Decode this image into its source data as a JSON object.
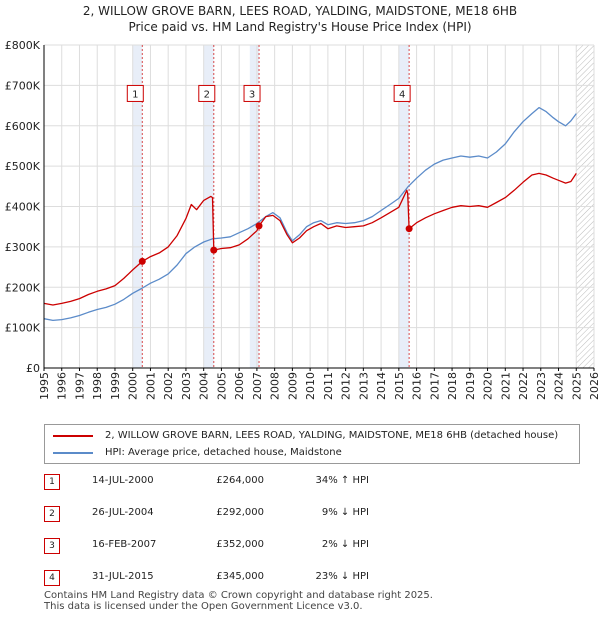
{
  "title_line1": "2, WILLOW GROVE BARN, LEES ROAD, YALDING, MAIDSTONE, ME18 6HB",
  "title_line2": "Price paid vs. HM Land Registry's House Price Index (HPI)",
  "colors": {
    "property": "#cc0000",
    "hpi": "#5b8bc9",
    "marker_line": "#cc0000",
    "grid": "#dddddd",
    "future_hatch": "#bbbbbb"
  },
  "chart_data": {
    "type": "line",
    "xlim": [
      1995,
      2026
    ],
    "ylim": [
      0,
      800000
    ],
    "y_ticks": [
      0,
      100000,
      200000,
      300000,
      400000,
      500000,
      600000,
      700000,
      800000
    ],
    "y_tick_labels": [
      "£0",
      "£100K",
      "£200K",
      "£300K",
      "£400K",
      "£500K",
      "£600K",
      "£700K",
      "£800K"
    ],
    "x_ticks": [
      1995,
      1996,
      1997,
      1998,
      1999,
      2000,
      2001,
      2002,
      2003,
      2004,
      2005,
      2006,
      2007,
      2008,
      2009,
      2010,
      2011,
      2012,
      2013,
      2014,
      2015,
      2016,
      2017,
      2018,
      2019,
      2020,
      2021,
      2022,
      2023,
      2024,
      2025,
      2026
    ],
    "x_tick_labels": [
      "1995",
      "1996",
      "1997",
      "1998",
      "1999",
      "2000",
      "2001",
      "2002",
      "2003",
      "2004",
      "2005",
      "2006",
      "2007",
      "2008",
      "2009",
      "2010",
      "2011",
      "2012",
      "2013",
      "2014",
      "2015",
      "2016",
      "2017",
      "2018",
      "2019",
      "2020",
      "2021",
      "2022",
      "2023",
      "2024",
      "2025",
      "2026"
    ],
    "future_from": 2025.0,
    "sale_bands": [
      [
        2000.0,
        2000.54
      ],
      [
        2004.0,
        2004.57
      ],
      [
        2006.6,
        2007.12
      ],
      [
        2015.0,
        2015.58
      ]
    ],
    "series": [
      {
        "name": "2, WILLOW GROVE BARN, LEES ROAD, YALDING, MAIDSTONE, ME18 6HB (detached house)",
        "color": "#cc0000",
        "points": [
          [
            1995.0,
            160000
          ],
          [
            1995.5,
            156000
          ],
          [
            1996.0,
            160000
          ],
          [
            1996.5,
            165000
          ],
          [
            1997.0,
            172000
          ],
          [
            1997.5,
            182000
          ],
          [
            1998.0,
            190000
          ],
          [
            1998.5,
            196000
          ],
          [
            1999.0,
            204000
          ],
          [
            1999.5,
            222000
          ],
          [
            2000.0,
            243000
          ],
          [
            2000.54,
            264000
          ],
          [
            2001.0,
            276000
          ],
          [
            2001.5,
            285000
          ],
          [
            2002.0,
            300000
          ],
          [
            2002.5,
            328000
          ],
          [
            2003.0,
            370000
          ],
          [
            2003.3,
            405000
          ],
          [
            2003.6,
            392000
          ],
          [
            2004.0,
            415000
          ],
          [
            2004.4,
            425000
          ],
          [
            2004.5,
            422000
          ],
          [
            2004.57,
            292000
          ],
          [
            2005.0,
            296000
          ],
          [
            2005.5,
            298000
          ],
          [
            2006.0,
            305000
          ],
          [
            2006.5,
            320000
          ],
          [
            2007.0,
            340000
          ],
          [
            2007.12,
            352000
          ],
          [
            2007.5,
            375000
          ],
          [
            2007.9,
            378000
          ],
          [
            2008.3,
            365000
          ],
          [
            2008.7,
            330000
          ],
          [
            2009.0,
            310000
          ],
          [
            2009.4,
            322000
          ],
          [
            2009.8,
            340000
          ],
          [
            2010.2,
            350000
          ],
          [
            2010.6,
            358000
          ],
          [
            2011.0,
            345000
          ],
          [
            2011.5,
            352000
          ],
          [
            2012.0,
            348000
          ],
          [
            2012.5,
            350000
          ],
          [
            2013.0,
            352000
          ],
          [
            2013.5,
            360000
          ],
          [
            2014.0,
            372000
          ],
          [
            2014.5,
            385000
          ],
          [
            2015.0,
            398000
          ],
          [
            2015.45,
            440000
          ],
          [
            2015.5,
            432000
          ],
          [
            2015.58,
            345000
          ],
          [
            2016.0,
            360000
          ],
          [
            2016.5,
            372000
          ],
          [
            2017.0,
            382000
          ],
          [
            2017.5,
            390000
          ],
          [
            2018.0,
            398000
          ],
          [
            2018.5,
            402000
          ],
          [
            2019.0,
            400000
          ],
          [
            2019.5,
            402000
          ],
          [
            2020.0,
            398000
          ],
          [
            2020.5,
            410000
          ],
          [
            2021.0,
            422000
          ],
          [
            2021.5,
            440000
          ],
          [
            2022.0,
            460000
          ],
          [
            2022.5,
            478000
          ],
          [
            2022.9,
            482000
          ],
          [
            2023.3,
            478000
          ],
          [
            2023.7,
            470000
          ],
          [
            2024.0,
            465000
          ],
          [
            2024.4,
            458000
          ],
          [
            2024.7,
            462000
          ],
          [
            2025.0,
            482000
          ]
        ]
      },
      {
        "name": "HPI: Average price, detached house, Maidstone",
        "color": "#5b8bc9",
        "points": [
          [
            1995.0,
            122000
          ],
          [
            1995.5,
            118000
          ],
          [
            1996.0,
            120000
          ],
          [
            1996.5,
            124000
          ],
          [
            1997.0,
            130000
          ],
          [
            1997.5,
            138000
          ],
          [
            1998.0,
            145000
          ],
          [
            1998.5,
            150000
          ],
          [
            1999.0,
            158000
          ],
          [
            1999.5,
            170000
          ],
          [
            2000.0,
            185000
          ],
          [
            2000.5,
            197000
          ],
          [
            2001.0,
            210000
          ],
          [
            2001.5,
            220000
          ],
          [
            2002.0,
            233000
          ],
          [
            2002.5,
            255000
          ],
          [
            2003.0,
            283000
          ],
          [
            2003.5,
            300000
          ],
          [
            2004.0,
            312000
          ],
          [
            2004.5,
            320000
          ],
          [
            2005.0,
            322000
          ],
          [
            2005.5,
            325000
          ],
          [
            2006.0,
            335000
          ],
          [
            2006.5,
            345000
          ],
          [
            2007.0,
            358000
          ],
          [
            2007.5,
            375000
          ],
          [
            2007.9,
            385000
          ],
          [
            2008.3,
            372000
          ],
          [
            2008.7,
            335000
          ],
          [
            2009.0,
            315000
          ],
          [
            2009.4,
            330000
          ],
          [
            2009.8,
            350000
          ],
          [
            2010.2,
            360000
          ],
          [
            2010.6,
            365000
          ],
          [
            2011.0,
            355000
          ],
          [
            2011.5,
            360000
          ],
          [
            2012.0,
            358000
          ],
          [
            2012.5,
            360000
          ],
          [
            2013.0,
            365000
          ],
          [
            2013.5,
            375000
          ],
          [
            2014.0,
            390000
          ],
          [
            2014.5,
            405000
          ],
          [
            2015.0,
            420000
          ],
          [
            2015.5,
            448000
          ],
          [
            2016.0,
            470000
          ],
          [
            2016.5,
            490000
          ],
          [
            2017.0,
            505000
          ],
          [
            2017.5,
            515000
          ],
          [
            2018.0,
            520000
          ],
          [
            2018.5,
            525000
          ],
          [
            2019.0,
            522000
          ],
          [
            2019.5,
            525000
          ],
          [
            2020.0,
            520000
          ],
          [
            2020.5,
            535000
          ],
          [
            2021.0,
            555000
          ],
          [
            2021.5,
            585000
          ],
          [
            2022.0,
            610000
          ],
          [
            2022.5,
            630000
          ],
          [
            2022.9,
            645000
          ],
          [
            2023.3,
            635000
          ],
          [
            2023.7,
            620000
          ],
          [
            2024.0,
            610000
          ],
          [
            2024.4,
            600000
          ],
          [
            2024.7,
            612000
          ],
          [
            2025.0,
            630000
          ]
        ]
      }
    ],
    "sales": [
      {
        "label": "1",
        "x": 2000.54,
        "price": 264000
      },
      {
        "label": "2",
        "x": 2004.57,
        "price": 292000
      },
      {
        "label": "3",
        "x": 2007.12,
        "price": 352000
      },
      {
        "label": "4",
        "x": 2015.58,
        "price": 345000
      }
    ],
    "marker_label_value": 680000
  },
  "legend": {
    "property_label": "2, WILLOW GROVE BARN, LEES ROAD, YALDING, MAIDSTONE, ME18 6HB (detached house)",
    "hpi_label": "HPI: Average price, detached house, Maidstone"
  },
  "sales_table": [
    {
      "num": "1",
      "date": "14-JUL-2000",
      "price": "£264,000",
      "hpi": "34% ↑ HPI"
    },
    {
      "num": "2",
      "date": "26-JUL-2004",
      "price": "£292,000",
      "hpi": "9% ↓ HPI"
    },
    {
      "num": "3",
      "date": "16-FEB-2007",
      "price": "£352,000",
      "hpi": "2% ↓ HPI"
    },
    {
      "num": "4",
      "date": "31-JUL-2015",
      "price": "£345,000",
      "hpi": "23% ↓ HPI"
    }
  ],
  "footer_line1": "Contains HM Land Registry data © Crown copyright and database right 2025.",
  "footer_line2": "This data is licensed under the Open Government Licence v3.0."
}
